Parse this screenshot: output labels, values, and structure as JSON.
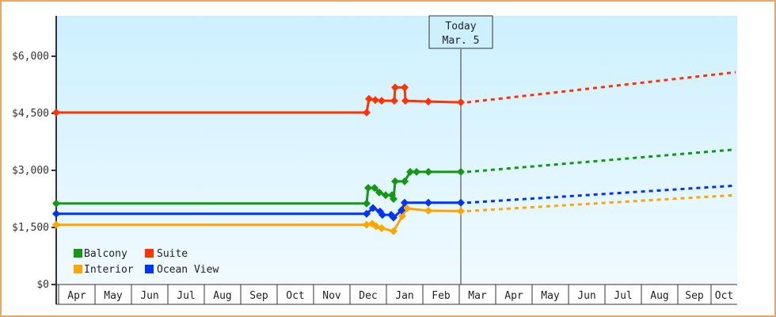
{
  "chart_data": {
    "type": "line",
    "title": "",
    "xlabel": "",
    "ylabel": "",
    "ylim": [
      0,
      7000
    ],
    "y_ticks": [
      {
        "label": "$0",
        "value": 0
      },
      {
        "label": "$1,500",
        "value": 1500
      },
      {
        "label": "$3,000",
        "value": 3000
      },
      {
        "label": "$4,500",
        "value": 4500
      },
      {
        "label": "$6,000",
        "value": 6000
      }
    ],
    "x_categories": [
      "Apr",
      "May",
      "Jun",
      "Jul",
      "Aug",
      "Sep",
      "Oct",
      "Nov",
      "Dec",
      "Jan",
      "Feb",
      "Mar",
      "Apr",
      "May",
      "Jun",
      "Jul",
      "Aug",
      "Sep",
      "Oct"
    ],
    "today_marker": {
      "line1": "Today",
      "line2": "Mar. 5"
    },
    "legend": [
      {
        "name": "Balcony",
        "color": "#119911"
      },
      {
        "name": "Suite",
        "color": "#ff3300"
      },
      {
        "name": "Interior",
        "color": "#ffa500"
      },
      {
        "name": "Ocean View",
        "color": "#0033ff"
      }
    ],
    "series": [
      {
        "name": "Suite",
        "color": "#ff3300",
        "history": [
          {
            "date": "Apr",
            "value": 4520
          },
          {
            "date": "Dec 1",
            "value": 4520
          },
          {
            "date": "Dec 2",
            "value": 4880
          },
          {
            "date": "Dec 3",
            "value": 4850
          },
          {
            "date": "Dec 4",
            "value": 4830
          },
          {
            "date": "Jan 1",
            "value": 4830
          },
          {
            "date": "Jan 2",
            "value": 5180
          },
          {
            "date": "Jan 3",
            "value": 5180
          },
          {
            "date": "Jan 4",
            "value": 4830
          },
          {
            "date": "Feb",
            "value": 4810
          },
          {
            "date": "Mar 5",
            "value": 4790
          }
        ],
        "forecast": [
          {
            "date": "Mar 5",
            "value": 4790
          },
          {
            "date": "Oct",
            "value": 5580
          }
        ]
      },
      {
        "name": "Balcony",
        "color": "#119911",
        "history": [
          {
            "date": "Apr",
            "value": 2130
          },
          {
            "date": "Dec 1",
            "value": 2130
          },
          {
            "date": "Dec 2",
            "value": 2540
          },
          {
            "date": "Dec 3",
            "value": 2540
          },
          {
            "date": "Dec 4",
            "value": 2420
          },
          {
            "date": "Dec 5",
            "value": 2350
          },
          {
            "date": "Jan 1",
            "value": 2350
          },
          {
            "date": "Jan 2",
            "value": 2250
          },
          {
            "date": "Jan 3",
            "value": 2710
          },
          {
            "date": "Jan 4",
            "value": 2710
          },
          {
            "date": "Jan 5",
            "value": 2960
          },
          {
            "date": "Jan 6",
            "value": 2960
          },
          {
            "date": "Feb",
            "value": 2960
          },
          {
            "date": "Mar 5",
            "value": 2960
          }
        ],
        "forecast": [
          {
            "date": "Mar 5",
            "value": 2960
          },
          {
            "date": "Oct",
            "value": 3550
          }
        ]
      },
      {
        "name": "Ocean View",
        "color": "#0033ff",
        "history": [
          {
            "date": "Apr",
            "value": 1860
          },
          {
            "date": "Dec 1",
            "value": 1860
          },
          {
            "date": "Dec 2",
            "value": 2010
          },
          {
            "date": "Dec 3",
            "value": 1920
          },
          {
            "date": "Dec 4",
            "value": 1830
          },
          {
            "date": "Jan 1",
            "value": 1830
          },
          {
            "date": "Jan 2",
            "value": 1760
          },
          {
            "date": "Jan 3",
            "value": 1950
          },
          {
            "date": "Jan 4",
            "value": 2150
          },
          {
            "date": "Feb",
            "value": 2150
          },
          {
            "date": "Mar 5",
            "value": 2150
          }
        ],
        "forecast": [
          {
            "date": "Mar 5",
            "value": 2150
          },
          {
            "date": "Oct",
            "value": 2600
          }
        ]
      },
      {
        "name": "Interior",
        "color": "#ffa500",
        "history": [
          {
            "date": "Apr",
            "value": 1570
          },
          {
            "date": "Dec 1",
            "value": 1570
          },
          {
            "date": "Dec 2",
            "value": 1600
          },
          {
            "date": "Dec 3",
            "value": 1530
          },
          {
            "date": "Dec 4",
            "value": 1480
          },
          {
            "date": "Jan 1",
            "value": 1400
          },
          {
            "date": "Jan 2",
            "value": 1800
          },
          {
            "date": "Jan 3",
            "value": 2000
          },
          {
            "date": "Feb",
            "value": 1940
          },
          {
            "date": "Mar 5",
            "value": 1930
          }
        ],
        "forecast": [
          {
            "date": "Mar 5",
            "value": 1930
          },
          {
            "date": "Oct",
            "value": 2350
          }
        ]
      }
    ]
  },
  "colors": {
    "frame_border": "#e8a865",
    "plot_bg_top": "#cdf0ff",
    "plot_bg_bottom": "#f0faff",
    "axis": "#333333"
  }
}
